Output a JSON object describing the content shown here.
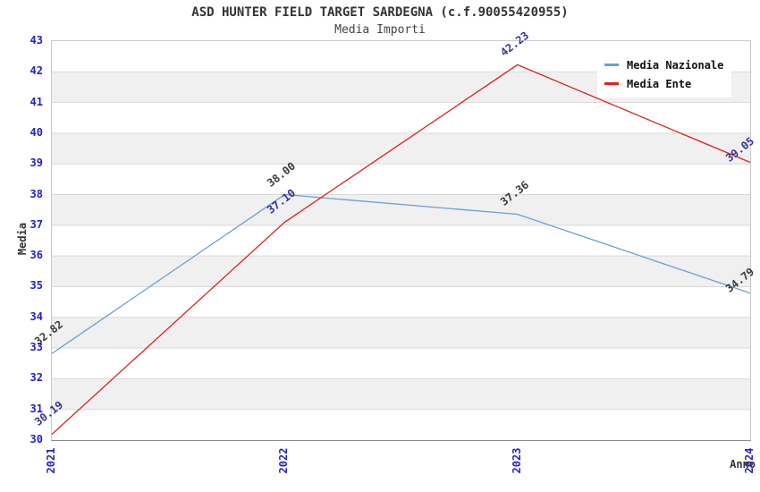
{
  "chart_data": {
    "type": "line",
    "title": "ASD HUNTER FIELD TARGET SARDEGNA (c.f.90055420955)",
    "subtitle": "Media Importi",
    "xlabel": "Anno",
    "ylabel": "Media",
    "categories": [
      "2021",
      "2022",
      "2023",
      "2024"
    ],
    "series": [
      {
        "name": "Media Nazionale",
        "color": "#6A9FD4",
        "label_color": "#3a3a3a",
        "values": [
          32.82,
          38.0,
          37.36,
          34.79
        ]
      },
      {
        "name": "Media Ente",
        "color": "#DD2222",
        "label_color": "#333399",
        "values": [
          30.19,
          37.1,
          42.23,
          39.05
        ]
      }
    ],
    "ylim": [
      30,
      43
    ],
    "ytick_step": 1,
    "grid": true,
    "legend_position": "top-right",
    "axis_text_color": "#2222CC",
    "band_colors": [
      "#ffffff",
      "#f0f0f0"
    ],
    "grid_color": "#d9d9d9",
    "value_label_decimals": 2
  }
}
